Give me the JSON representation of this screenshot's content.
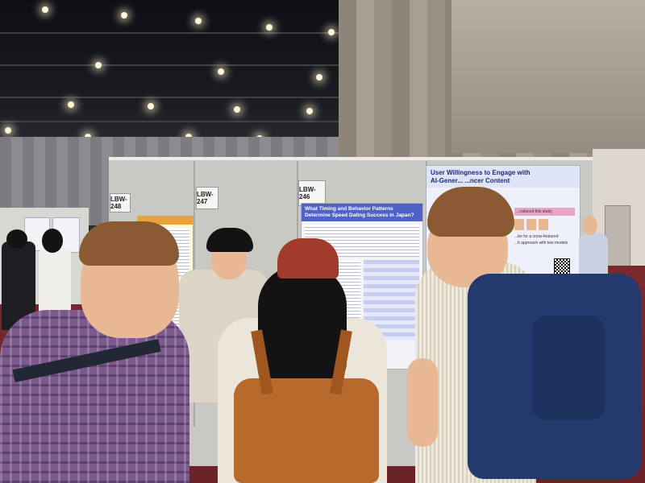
{
  "scene": {
    "booth_labels": [
      "LBW-248",
      "LBW-247",
      "LBW-246"
    ],
    "poster_center": {
      "title_line1": "What Timing and Behavior Patterns",
      "title_line2": "Determine Speed Dating Success in Japan?"
    },
    "poster_right": {
      "title_line1": "User Willingness to Engage with",
      "title_line2": "AI-Gener... ...ncer Content",
      "note1": "...roduced this study",
      "note2": "...be for a cross-featured",
      "note3": "...h approach with two models"
    },
    "colors": {
      "floor": "#6a2227",
      "board": "#c9c9c3",
      "poster_header": "#4f62c8",
      "backpack_blue": "#243a6e",
      "backpack_orange": "#b8692c",
      "cap_red": "#a33a2e"
    }
  }
}
